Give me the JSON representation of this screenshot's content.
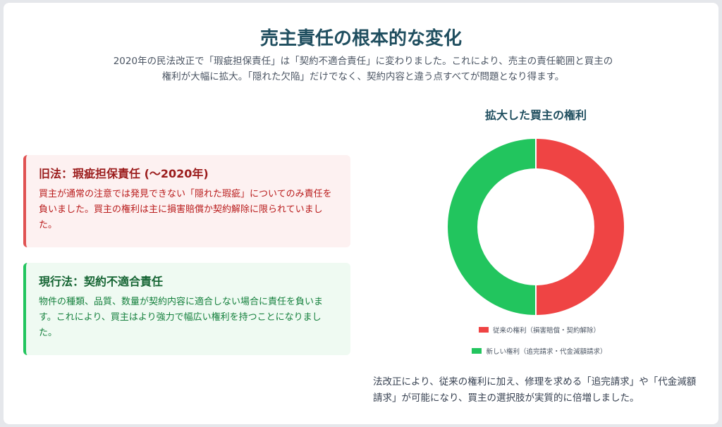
{
  "page": {
    "title": "売主責任の根本的な変化",
    "subtitle": "2020年の民法改正で「瑕疵担保責任」は「契約不適合責任」に変わりました。これにより、売主の責任範囲と買主の権利が大幅に拡大。「隠れた欠陥」だけでなく、契約内容と違う点すべてが問題となり得ます。"
  },
  "old_law": {
    "heading": "旧法：瑕疵担保責任 (〜2020年)",
    "body": "買主が通常の注意では発見できない「隠れた瑕疵」についてのみ責任を負いました。買主の権利は主に損害賠償か契約解除に限られていました。",
    "color": "#e05252"
  },
  "new_law": {
    "heading": "現行法：契約不適合責任",
    "body": "物件の種類、品質、数量が契約内容に適合しない場合に責任を負います。これにより、買主はより強力で幅広い権利を持つことになりました。",
    "color": "#22c55e"
  },
  "chart_data": {
    "type": "pie",
    "title": "拡大した買主の権利",
    "series": [
      {
        "name": "従来の権利（損害賠償・契約解除）",
        "value": 50,
        "color": "#ef4444"
      },
      {
        "name": "新しい権利（追完請求・代金減額請求）",
        "value": 50,
        "color": "#22c55e"
      }
    ],
    "legend_position": "bottom"
  },
  "note": "法改正により、従来の権利に加え、修理を求める「追完請求」や「代金減額請求」が可能になり、買主の選択肢が実質的に倍増しました。"
}
